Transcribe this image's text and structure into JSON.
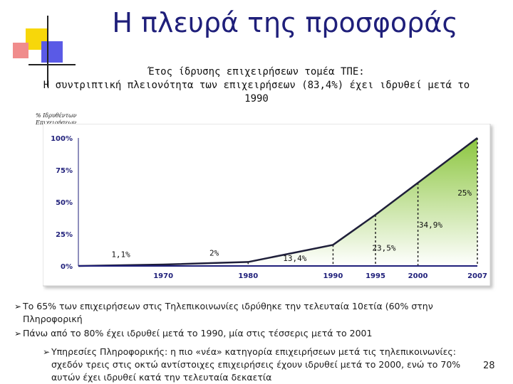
{
  "slide": {
    "title": "Η πλευρά της προσφοράς",
    "subtitle_line1": "Έτος ίδρυσης επιχειρήσεων τομέα ΤΠΕ:",
    "subtitle_line2": "Η συντριπτική πλειονότητα των επιχειρήσεων (83,4%) έχει ιδρυθεί μετά το",
    "subtitle_line3": "1990",
    "y_axis_label_line1": "% Ιδρυθέντων",
    "y_axis_label_line2": "Επιχειρήσεων",
    "page_number": "28"
  },
  "bullets": {
    "b1": "Το 65% των επιχειρήσεων στις Τηλεπικοινωνίες ιδρύθηκε την τελευταία 10ετία (60% στην Πληροφορική",
    "b2": "Πάνω από το 80% έχει ιδρυθεί μετά το 1990, μία στις τέσσερις μετά το 2001",
    "b3": "Υπηρεσίες Πληροφορικής: η πιο «νέα» κατηγορία επιχειρήσεων μετά τις τηλεπικοινωνίες: σχεδόν τρεις στις οκτώ αντίστοιχες επιχειρήσεις έχουν ιδρυθεί μετά το 2000, ενώ το 70% αυτών έχει ιδρυθεί κατά την τελευταία δεκαετία"
  },
  "colors": {
    "title": "#1f1f7a",
    "area_top": "#8cc63f",
    "area_bottom": "#ffffff",
    "line": "#1f1f3a",
    "axis": "#1f1f7a"
  },
  "chart_data": {
    "type": "area",
    "x": [
      1960,
      1970,
      1980,
      1990,
      1995,
      2000,
      2007
    ],
    "values": [
      0,
      1.1,
      3.1,
      16.5,
      40.0,
      65.0,
      100.0
    ],
    "x_ticks": [
      "1970",
      "1980",
      "1990",
      "1995",
      "2000",
      "2007"
    ],
    "y_ticks": [
      "0%",
      "25%",
      "50%",
      "75%",
      "100%"
    ],
    "ylim": [
      0,
      100
    ],
    "grid": false,
    "annotations": [
      {
        "text": "1,1%",
        "x": 1965,
        "y": 7
      },
      {
        "text": "2%",
        "x": 1976,
        "y": 8
      },
      {
        "text": "13,4%",
        "x": 1985.5,
        "y": 4
      },
      {
        "text": "23,5%",
        "x": 1996,
        "y": 12
      },
      {
        "text": "34,9%",
        "x": 2001.5,
        "y": 30
      },
      {
        "text": "25%",
        "x": 2005.5,
        "y": 55
      }
    ]
  }
}
